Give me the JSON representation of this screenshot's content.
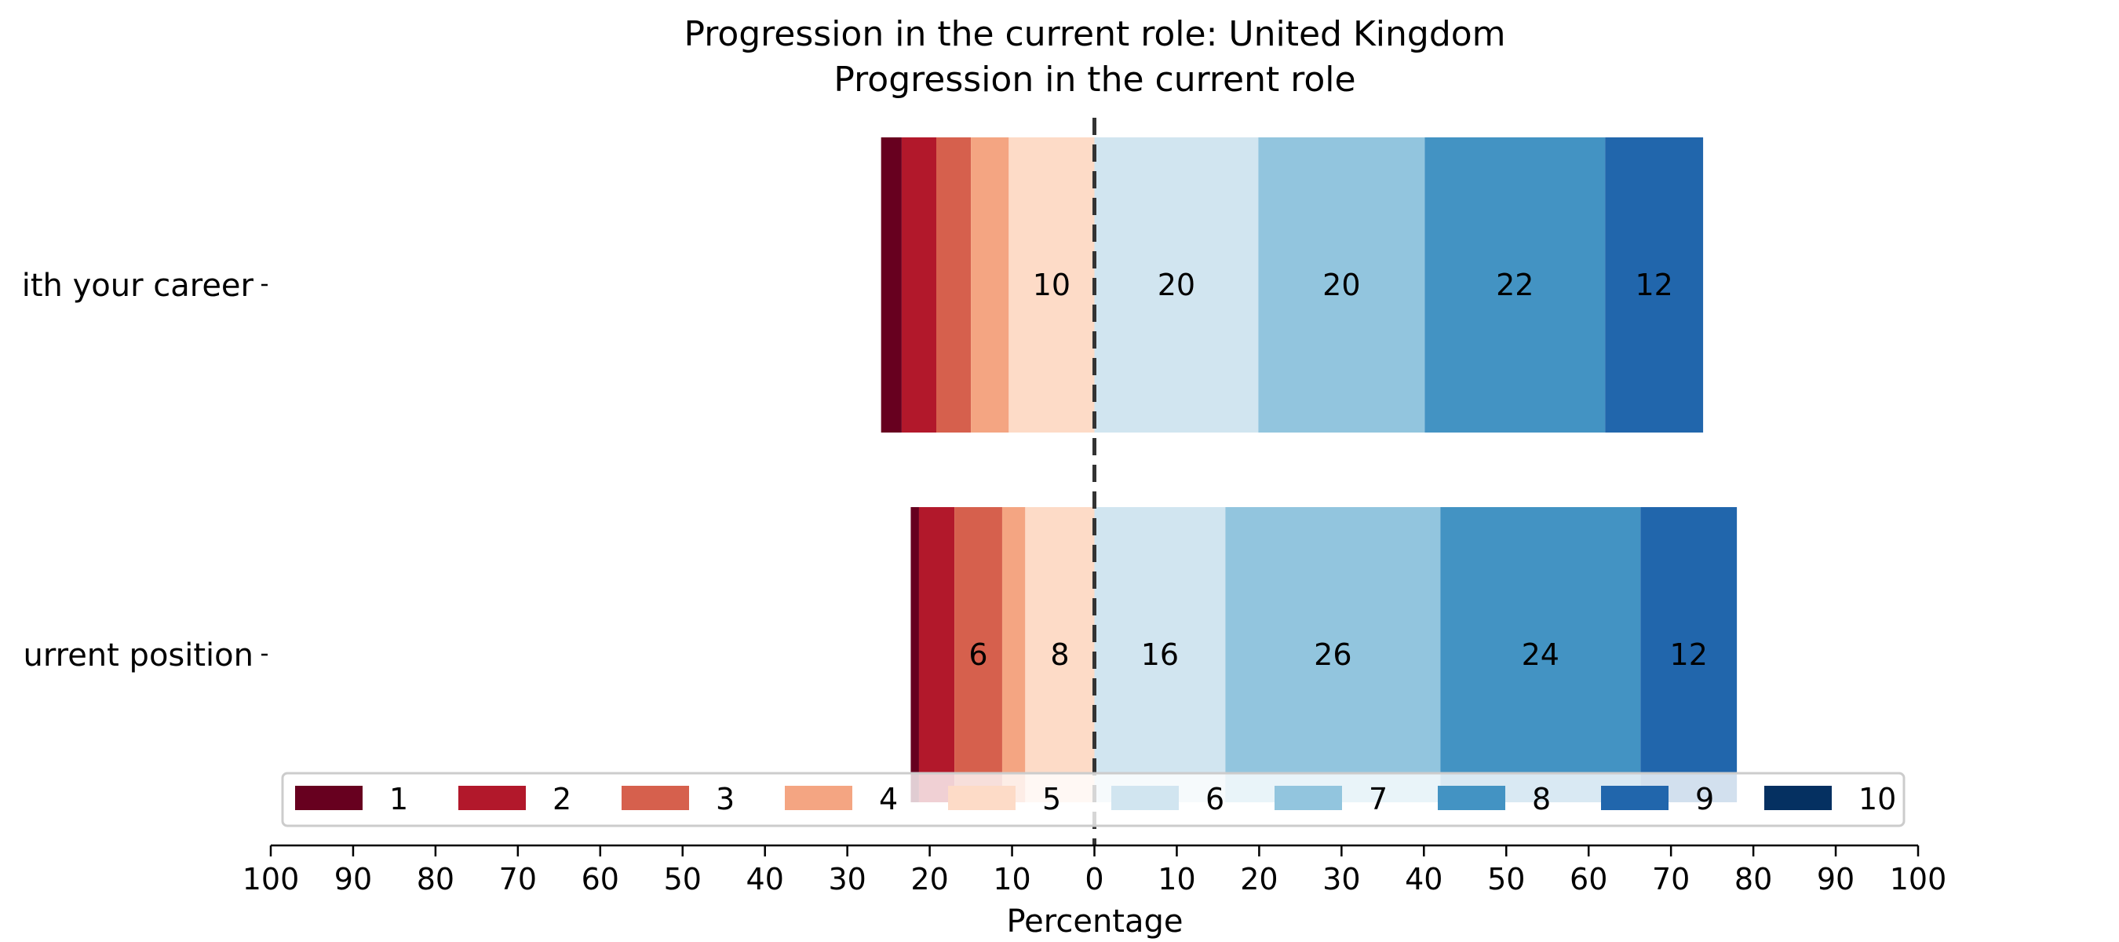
{
  "chart_data": {
    "type": "bar",
    "orientation": "horizontal",
    "stacked": "diverging",
    "title": "Progression in the current role: United Kingdom",
    "subtitle": "Progression in the current role",
    "xlabel": "Percentage",
    "xlim": [
      -100,
      100
    ],
    "xticks": [
      -100,
      -90,
      -80,
      -70,
      -60,
      -50,
      -40,
      -30,
      -20,
      -10,
      0,
      10,
      20,
      30,
      40,
      50,
      60,
      70,
      80,
      90,
      100
    ],
    "xtick_labels": [
      "100",
      "90",
      "80",
      "70",
      "60",
      "50",
      "40",
      "30",
      "20",
      "10",
      "0",
      "10",
      "20",
      "30",
      "40",
      "50",
      "60",
      "70",
      "80",
      "90",
      "100"
    ],
    "categories": [
      "ith your career",
      "urrent position"
    ],
    "legend_placement": "lower-center",
    "grid": false,
    "series": [
      {
        "name": "1",
        "color": "#67001f",
        "values": [
          2.5,
          1
        ],
        "side": "negative"
      },
      {
        "name": "2",
        "color": "#b2182b",
        "values": [
          4.2,
          4.3
        ],
        "side": "negative"
      },
      {
        "name": "3",
        "color": "#d6604d",
        "values": [
          4.2,
          5.8
        ],
        "side": "negative"
      },
      {
        "name": "4",
        "color": "#f4a582",
        "values": [
          4.6,
          2.8
        ],
        "side": "negative"
      },
      {
        "name": "5",
        "color": "#fddbc7",
        "values": [
          10.4,
          8.4
        ],
        "side": "negative"
      },
      {
        "name": "6",
        "color": "#d1e5f0",
        "values": [
          19.9,
          15.9
        ],
        "side": "positive"
      },
      {
        "name": "7",
        "color": "#92c5de",
        "values": [
          20.2,
          26.1
        ],
        "side": "positive"
      },
      {
        "name": "8",
        "color": "#4393c3",
        "values": [
          21.9,
          24.3
        ],
        "side": "positive"
      },
      {
        "name": "9",
        "color": "#2166ac",
        "values": [
          11.9,
          11.7
        ],
        "side": "positive"
      },
      {
        "name": "10",
        "color": "#053061",
        "values": [
          0,
          0
        ],
        "side": "positive"
      }
    ],
    "data_labels": [
      [
        "",
        "",
        "",
        "",
        "10",
        "20",
        "20",
        "22",
        "12",
        ""
      ],
      [
        "",
        "",
        "6",
        "",
        "8",
        "16",
        "26",
        "24",
        "12",
        ""
      ]
    ]
  }
}
